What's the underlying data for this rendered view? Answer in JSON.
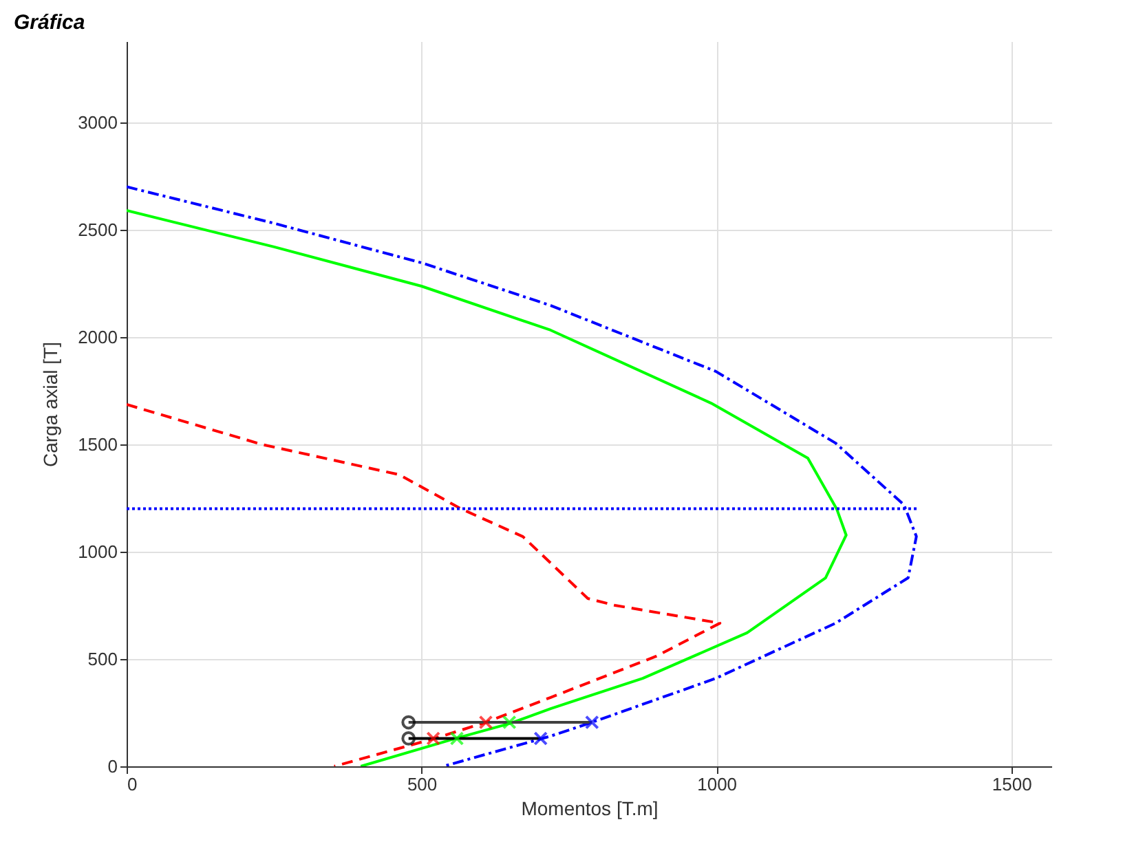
{
  "chart_data": {
    "type": "line",
    "title": "Gráfica",
    "xlabel": "Momentos [T.m]",
    "ylabel": "Carga axial [T]",
    "xlim": [
      0,
      1568
    ],
    "ylim": [
      0,
      3378
    ],
    "xticks": [
      0,
      500,
      1000,
      1500
    ],
    "yticks": [
      0,
      500,
      1000,
      1500,
      2000,
      2500,
      3000
    ],
    "grid": true,
    "series": [
      {
        "color": "#0000ff",
        "line_style": "dashdot",
        "x": [
          0,
          250,
          500,
          719,
          999,
          1202,
          1318,
          1339,
          1325,
          1202,
          999,
          789,
          719,
          537
        ],
        "values": [
          2700,
          2530,
          2346,
          2147,
          1840,
          1506,
          1218,
          1071,
          878,
          667,
          410,
          205,
          141,
          0
        ]
      },
      {
        "color": "#00ff00",
        "line_style": "solid",
        "x": [
          0,
          250,
          500,
          719,
          991,
          1155,
          1204,
          1220,
          1185,
          1052,
          875,
          719,
          649,
          555,
          397
        ],
        "values": [
          2590,
          2420,
          2237,
          2032,
          1692,
          1436,
          1199,
          1077,
          878,
          622,
          410,
          269,
          199,
          128,
          0
        ]
      },
      {
        "color": "#ff0000",
        "line_style": "dashed",
        "x": [
          0,
          229,
          462,
          567,
          672,
          782,
          828,
          1006,
          898,
          719,
          609,
          520,
          352
        ],
        "values": [
          1686,
          1500,
          1359,
          1200,
          1070,
          782,
          750,
          667,
          513,
          321,
          205,
          128,
          0
        ]
      },
      {
        "color": "#0000ff",
        "line_style": "dotted",
        "x": [
          0,
          1342
        ],
        "values": [
          1200,
          1200
        ]
      },
      {
        "color": "#404040",
        "line_style": "solid",
        "x": [
          478,
          789
        ],
        "values": [
          205,
          205
        ]
      },
      {
        "color": "#000000",
        "line_style": "solid",
        "x": [
          478,
          702
        ],
        "values": [
          130,
          130
        ]
      },
      {
        "type": "scatter",
        "color": "#000000",
        "marker": "circle",
        "x": [
          478,
          478
        ],
        "values": [
          205,
          130
        ]
      },
      {
        "type": "scatter",
        "color": "#ff0000",
        "marker": "cross",
        "x": [
          609,
          520
        ],
        "values": [
          205,
          130
        ]
      },
      {
        "type": "scatter",
        "color": "#00ff00",
        "marker": "cross",
        "x": [
          649,
          560
        ],
        "values": [
          205,
          130
        ]
      },
      {
        "type": "scatter",
        "color": "#0000ff",
        "marker": "cross",
        "x": [
          789,
          702
        ],
        "values": [
          205,
          130
        ]
      }
    ]
  }
}
